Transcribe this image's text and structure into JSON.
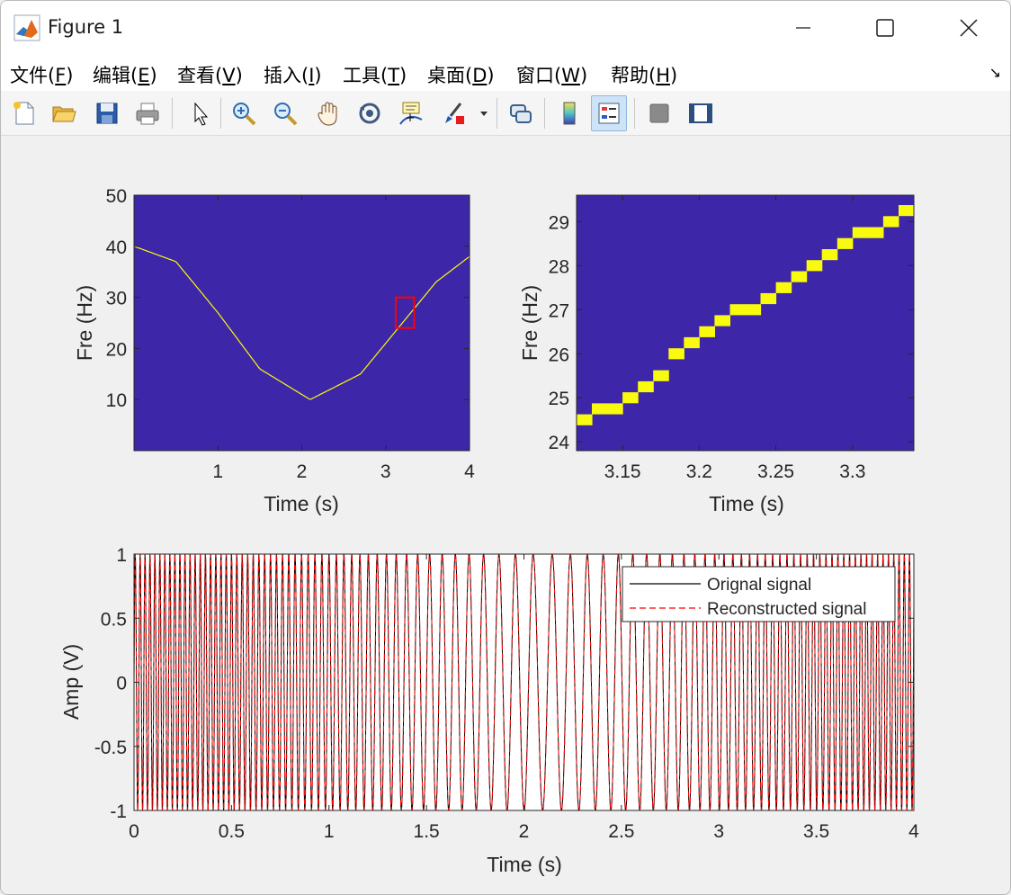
{
  "window": {
    "title": "Figure 1"
  },
  "menu": [
    {
      "label": "文件(",
      "key": "F"
    },
    {
      "label": "编辑(",
      "key": "E"
    },
    {
      "label": "查看(",
      "key": "V"
    },
    {
      "label": "插入(",
      "key": "I"
    },
    {
      "label": "工具(",
      "key": "T"
    },
    {
      "label": "桌面(",
      "key": "D"
    },
    {
      "label": "窗口(",
      "key": "W"
    },
    {
      "label": "帮助(",
      "key": "H"
    }
  ],
  "toolbar": [
    "new-figure",
    "open-file",
    "save",
    "print",
    "edit-plot",
    "zoom-in",
    "zoom-out",
    "pan",
    "rotate-3d",
    "data-cursor",
    "brush",
    "link-plot",
    "colorbar",
    "legend",
    "hide-plot-tools",
    "show-plot-tools"
  ],
  "colors": {
    "axes_bg": "#3d26a8",
    "ridge": "#f9fb0e",
    "signal": "#000000",
    "reconstructed": "#ff0000",
    "zoom_box": "#ff0000"
  },
  "chart_data": [
    {
      "type": "heatmap",
      "xlabel": "Time (s)",
      "ylabel": "Fre (Hz)",
      "xlim": [
        0,
        4
      ],
      "ylim": [
        0,
        50
      ],
      "xticks": [
        1,
        2,
        3,
        4
      ],
      "yticks": [
        10,
        20,
        30,
        40,
        50
      ],
      "ridge": {
        "x": [
          0,
          0.5,
          1.0,
          1.5,
          2.1,
          2.7,
          3.2,
          3.6,
          4.0
        ],
        "y": [
          40,
          37,
          27,
          16,
          10,
          15,
          25,
          33,
          38
        ]
      },
      "zoom_box": {
        "x": [
          3.12,
          3.34
        ],
        "y": [
          24,
          30
        ]
      }
    },
    {
      "type": "heatmap",
      "xlabel": "Time (s)",
      "ylabel": "Fre (Hz)",
      "xlim": [
        3.12,
        3.34
      ],
      "ylim": [
        23.8,
        29.6
      ],
      "xticks": [
        "3.15",
        "3.2",
        "3.25",
        "3.3"
      ],
      "yticks": [
        24,
        25,
        26,
        27,
        28,
        29
      ],
      "ridge": {
        "x": [
          3.12,
          3.15,
          3.2,
          3.23,
          3.25,
          3.3,
          3.34
        ],
        "y": [
          24.5,
          24.9,
          26.3,
          27.0,
          27.3,
          28.6,
          29.3
        ]
      }
    },
    {
      "type": "line",
      "xlabel": "Time (s)",
      "ylabel": "Amp (V)",
      "xlim": [
        0,
        4
      ],
      "ylim": [
        -1,
        1
      ],
      "xticks": [
        "0",
        "0.5",
        "1",
        "1.5",
        "2",
        "2.5",
        "3",
        "3.5",
        "4"
      ],
      "yticks": [
        "-1",
        "-0.5",
        "0",
        "0.5",
        "1"
      ],
      "series": [
        {
          "name": "Orignal signal",
          "style": "solid"
        },
        {
          "name": "Reconstructed signal",
          "style": "dashed"
        }
      ],
      "legend": "top-right"
    }
  ]
}
